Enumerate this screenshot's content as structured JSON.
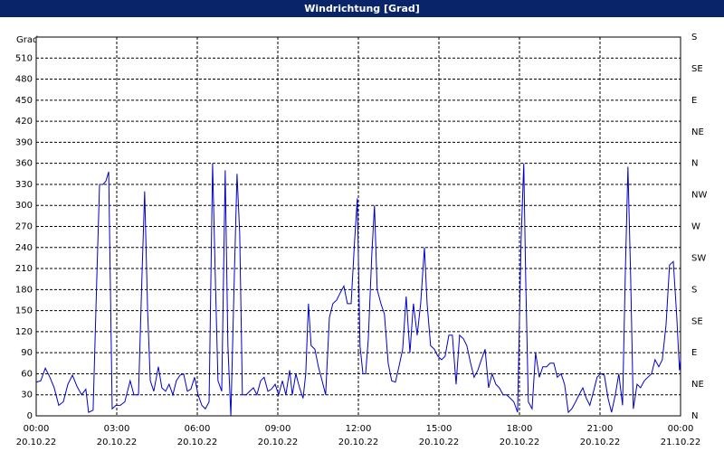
{
  "chart_data": {
    "type": "line",
    "title": "Windrichtung [Grad]",
    "y_label": "Grad",
    "x": [
      0,
      0.17,
      0.34,
      0.51,
      0.67,
      0.84,
      1.01,
      1.18,
      1.35,
      1.52,
      1.69,
      1.85,
      1.95,
      2.12,
      2.26,
      2.36,
      2.49,
      2.6,
      2.7,
      2.83,
      2.97,
      3.13,
      3.3,
      3.5,
      3.64,
      3.81,
      3.94,
      4.04,
      4.15,
      4.25,
      4.38,
      4.55,
      4.68,
      4.82,
      4.95,
      5.09,
      5.22,
      5.36,
      5.49,
      5.63,
      5.76,
      5.9,
      6.03,
      6.17,
      6.3,
      6.44,
      6.57,
      6.67,
      6.77,
      6.91,
      7.04,
      7.14,
      7.25,
      7.38,
      7.48,
      7.58,
      7.68,
      7.82,
      7.95,
      8.09,
      8.22,
      8.36,
      8.49,
      8.63,
      8.76,
      8.9,
      9.03,
      9.17,
      9.3,
      9.44,
      9.54,
      9.67,
      9.81,
      9.94,
      10.04,
      10.14,
      10.24,
      10.38,
      10.51,
      10.65,
      10.78,
      10.92,
      11.05,
      11.19,
      11.32,
      11.46,
      11.59,
      11.73,
      11.86,
      11.96,
      12.06,
      12.17,
      12.27,
      12.37,
      12.5,
      12.6,
      12.7,
      12.84,
      12.97,
      13.11,
      13.24,
      13.38,
      13.51,
      13.65,
      13.78,
      13.92,
      14.05,
      14.19,
      14.32,
      14.46,
      14.56,
      14.69,
      14.83,
      14.96,
      15.1,
      15.23,
      15.37,
      15.5,
      15.64,
      15.77,
      15.91,
      16.04,
      16.18,
      16.31,
      16.45,
      16.58,
      16.72,
      16.85,
      16.98,
      17.12,
      17.25,
      17.39,
      17.52,
      17.66,
      17.79,
      17.93,
      18.06,
      18.16,
      18.23,
      18.33,
      18.47,
      18.6,
      18.74,
      18.87,
      19.01,
      19.14,
      19.28,
      19.41,
      19.55,
      19.68,
      19.82,
      19.95,
      20.09,
      20.22,
      20.36,
      20.49,
      20.62,
      20.76,
      20.89,
      21.03,
      21.16,
      21.3,
      21.43,
      21.57,
      21.7,
      21.84,
      21.94,
      22.04,
      22.14,
      22.24,
      22.38,
      22.51,
      22.65,
      22.78,
      22.92,
      23.05,
      23.19,
      23.32,
      23.46,
      23.59,
      23.73,
      23.86,
      23.96,
      24
    ],
    "series": [
      {
        "color": "#0000cc",
        "values": [
          48,
          50,
          68,
          55,
          40,
          15,
          20,
          45,
          58,
          42,
          30,
          38,
          5,
          8,
          200,
          330,
          330,
          335,
          348,
          10,
          15,
          15,
          20,
          50,
          30,
          30,
          200,
          320,
          150,
          50,
          35,
          70,
          40,
          35,
          45,
          30,
          50,
          58,
          60,
          35,
          38,
          55,
          30,
          15,
          10,
          20,
          360,
          200,
          50,
          35,
          350,
          100,
          0,
          200,
          345,
          260,
          30,
          30,
          35,
          40,
          30,
          50,
          55,
          35,
          38,
          45,
          30,
          50,
          30,
          65,
          30,
          60,
          40,
          25,
          60,
          160,
          100,
          95,
          70,
          50,
          30,
          140,
          160,
          165,
          175,
          185,
          160,
          160,
          250,
          310,
          100,
          60,
          60,
          110,
          230,
          300,
          180,
          160,
          145,
          75,
          50,
          48,
          70,
          95,
          170,
          90,
          160,
          115,
          160,
          240,
          160,
          100,
          95,
          85,
          80,
          85,
          115,
          115,
          45,
          115,
          110,
          100,
          75,
          55,
          65,
          80,
          95,
          40,
          60,
          45,
          40,
          30,
          30,
          25,
          20,
          5,
          250,
          360,
          200,
          20,
          10,
          90,
          55,
          70,
          70,
          75,
          75,
          55,
          60,
          45,
          5,
          10,
          20,
          30,
          40,
          25,
          15,
          35,
          55,
          60,
          58,
          25,
          5,
          30,
          60,
          15,
          200,
          355,
          200,
          10,
          45,
          40,
          50,
          55,
          60,
          80,
          70,
          80,
          130,
          215,
          220,
          140,
          65,
          80
        ]
      }
    ],
    "xlim": [
      0,
      24
    ],
    "xticks": [
      {
        "value": 0,
        "label": "00:00",
        "date": "20.10.22"
      },
      {
        "value": 3,
        "label": "03:00",
        "date": "20.10.22"
      },
      {
        "value": 6,
        "label": "06:00",
        "date": "20.10.22"
      },
      {
        "value": 9,
        "label": "09:00",
        "date": "20.10.22"
      },
      {
        "value": 12,
        "label": "12:00",
        "date": "20.10.22"
      },
      {
        "value": 15,
        "label": "15:00",
        "date": "20.10.22"
      },
      {
        "value": 18,
        "label": "18:00",
        "date": "20.10.22"
      },
      {
        "value": 21,
        "label": "21:00",
        "date": "20.10.22"
      },
      {
        "value": 24,
        "label": "00:00",
        "date": "21.10.22"
      }
    ],
    "ylim": [
      0,
      540
    ],
    "yticks": [
      0,
      30,
      60,
      90,
      120,
      150,
      180,
      210,
      240,
      270,
      300,
      330,
      360,
      390,
      420,
      450,
      480,
      510
    ],
    "y2lim": [
      0,
      540
    ],
    "y2ticks": [
      {
        "value": 0,
        "label": "N"
      },
      {
        "value": 45,
        "label": "NE"
      },
      {
        "value": 90,
        "label": "E"
      },
      {
        "value": 135,
        "label": "SE"
      },
      {
        "value": 180,
        "label": "S"
      },
      {
        "value": 225,
        "label": "SW"
      },
      {
        "value": 270,
        "label": "W"
      },
      {
        "value": 315,
        "label": "NW"
      },
      {
        "value": 360,
        "label": "N"
      },
      {
        "value": 405,
        "label": "NE"
      },
      {
        "value": 450,
        "label": "E"
      },
      {
        "value": 495,
        "label": "SE"
      },
      {
        "value": 540,
        "label": "S"
      }
    ],
    "grid": true
  }
}
